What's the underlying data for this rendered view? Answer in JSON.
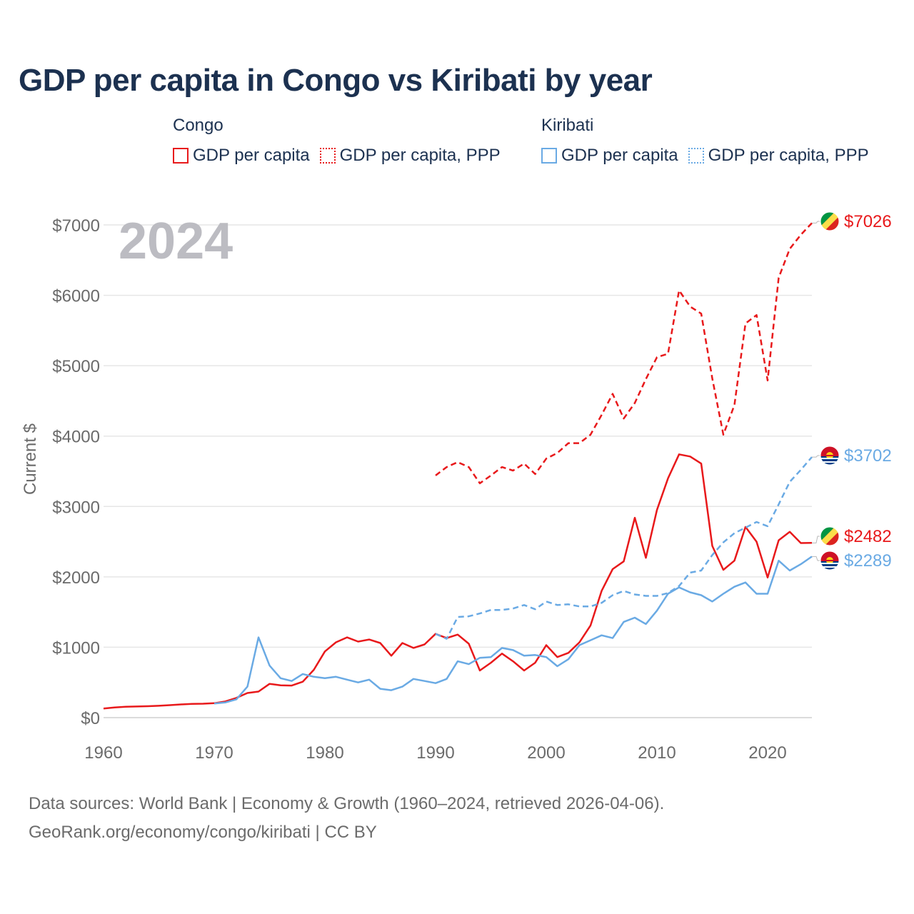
{
  "title": "GDP per capita in Congo vs Kiribati by year",
  "legend": {
    "groups": [
      {
        "name": "Congo",
        "items": [
          {
            "label": "GDP per capita",
            "style": "solid",
            "color": "#e8191b"
          },
          {
            "label": "GDP per capita, PPP",
            "style": "dotted",
            "color": "#e8191b"
          }
        ]
      },
      {
        "name": "Kiribati",
        "items": [
          {
            "label": "GDP per capita",
            "style": "solid",
            "color": "#6aaae4"
          },
          {
            "label": "GDP per capita, PPP",
            "style": "dotted",
            "color": "#6aaae4"
          }
        ]
      }
    ]
  },
  "year_label": "2024",
  "footer": {
    "line1": "Data sources: World Bank | Economy & Growth (1960–2024, retrieved 2026-04-06).",
    "line2": "GeoRank.org/economy/congo/kiribati | CC BY"
  },
  "chart_data": {
    "type": "line",
    "title": "GDP per capita in Congo vs Kiribati by year",
    "xlabel": "",
    "ylabel": "Current $",
    "xlim": [
      1960,
      2024
    ],
    "ylim": [
      0,
      7000
    ],
    "x_ticks": [
      1960,
      1970,
      1980,
      1990,
      2000,
      2010,
      2020
    ],
    "y_ticks": [
      0,
      1000,
      2000,
      3000,
      4000,
      5000,
      6000,
      7000
    ],
    "y_tick_labels": [
      "$0",
      "$1000",
      "$2000",
      "$3000",
      "$4000",
      "$5000",
      "$6000",
      "$7000"
    ],
    "grid": true,
    "series": [
      {
        "name": "Congo GDP per capita",
        "country": "Congo",
        "color": "#e8191b",
        "dash": "solid",
        "end_label": "$2482",
        "flag": "congo",
        "x": [
          1960,
          1961,
          1962,
          1963,
          1964,
          1965,
          1966,
          1967,
          1968,
          1969,
          1970,
          1971,
          1972,
          1973,
          1974,
          1975,
          1976,
          1977,
          1978,
          1979,
          1980,
          1981,
          1982,
          1983,
          1984,
          1985,
          1986,
          1987,
          1988,
          1989,
          1990,
          1991,
          1992,
          1993,
          1994,
          1995,
          1996,
          1997,
          1998,
          1999,
          2000,
          2001,
          2002,
          2003,
          2004,
          2005,
          2006,
          2007,
          2008,
          2009,
          2010,
          2011,
          2012,
          2013,
          2014,
          2015,
          2016,
          2017,
          2018,
          2019,
          2020,
          2021,
          2022,
          2023,
          2024
        ],
        "y": [
          130,
          145,
          155,
          158,
          162,
          168,
          178,
          188,
          195,
          198,
          205,
          230,
          280,
          350,
          370,
          480,
          460,
          455,
          510,
          680,
          940,
          1070,
          1140,
          1080,
          1110,
          1060,
          880,
          1060,
          990,
          1040,
          1190,
          1130,
          1180,
          1050,
          670,
          780,
          910,
          800,
          670,
          780,
          1030,
          860,
          920,
          1070,
          1310,
          1800,
          2110,
          2220,
          2840,
          2270,
          2950,
          3400,
          3740,
          3710,
          3610,
          2440,
          2100,
          2230,
          2710,
          2500,
          1990,
          2520,
          2640,
          2480,
          2482
        ]
      },
      {
        "name": "Congo GDP per capita, PPP",
        "country": "Congo",
        "color": "#e8191b",
        "dash": "dashed",
        "end_label": "$7026",
        "flag": "congo",
        "x": [
          1990,
          1991,
          1992,
          1993,
          1994,
          1995,
          1996,
          1997,
          1998,
          1999,
          2000,
          2001,
          2002,
          2003,
          2004,
          2005,
          2006,
          2007,
          2008,
          2009,
          2010,
          2011,
          2012,
          2013,
          2014,
          2015,
          2016,
          2017,
          2018,
          2019,
          2020,
          2021,
          2022,
          2023,
          2024
        ],
        "y": [
          3440,
          3560,
          3630,
          3560,
          3330,
          3440,
          3560,
          3510,
          3610,
          3460,
          3680,
          3760,
          3900,
          3900,
          4020,
          4300,
          4600,
          4250,
          4470,
          4810,
          5120,
          5170,
          6070,
          5840,
          5740,
          4820,
          4020,
          4440,
          5600,
          5720,
          4790,
          6250,
          6660,
          6860,
          7026
        ]
      },
      {
        "name": "Kiribati GDP per capita",
        "country": "Kiribati",
        "color": "#6aaae4",
        "dash": "solid",
        "end_label": "$2289",
        "flag": "kiribati",
        "x": [
          1970,
          1971,
          1972,
          1973,
          1974,
          1975,
          1976,
          1977,
          1978,
          1979,
          1980,
          1981,
          1982,
          1983,
          1984,
          1985,
          1986,
          1987,
          1988,
          1989,
          1990,
          1991,
          1992,
          1993,
          1994,
          1995,
          1996,
          1997,
          1998,
          1999,
          2000,
          2001,
          2002,
          2003,
          2004,
          2005,
          2006,
          2007,
          2008,
          2009,
          2010,
          2011,
          2012,
          2013,
          2014,
          2015,
          2016,
          2017,
          2018,
          2019,
          2020,
          2021,
          2022,
          2023,
          2024
        ],
        "y": [
          200,
          215,
          260,
          440,
          1140,
          740,
          560,
          520,
          620,
          580,
          560,
          580,
          540,
          500,
          540,
          410,
          390,
          440,
          550,
          520,
          490,
          550,
          800,
          760,
          850,
          860,
          990,
          960,
          880,
          890,
          860,
          730,
          830,
          1030,
          1100,
          1170,
          1130,
          1360,
          1420,
          1330,
          1520,
          1760,
          1850,
          1780,
          1740,
          1650,
          1760,
          1860,
          1920,
          1760,
          1760,
          2230,
          2090,
          2180,
          2289
        ]
      },
      {
        "name": "Kiribati GDP per capita, PPP",
        "country": "Kiribati",
        "color": "#6aaae4",
        "dash": "dashed",
        "end_label": "$3702",
        "flag": "kiribati",
        "x": [
          1990,
          1991,
          1992,
          1993,
          1994,
          1995,
          1996,
          1997,
          1998,
          1999,
          2000,
          2001,
          2002,
          2003,
          2004,
          2005,
          2006,
          2007,
          2008,
          2009,
          2010,
          2011,
          2012,
          2013,
          2014,
          2015,
          2016,
          2017,
          2018,
          2019,
          2020,
          2021,
          2022,
          2023,
          2024
        ],
        "y": [
          1190,
          1120,
          1430,
          1440,
          1480,
          1530,
          1530,
          1550,
          1600,
          1540,
          1650,
          1600,
          1610,
          1580,
          1580,
          1630,
          1740,
          1800,
          1750,
          1730,
          1730,
          1770,
          1870,
          2060,
          2090,
          2310,
          2490,
          2620,
          2700,
          2780,
          2720,
          3030,
          3350,
          3520,
          3702
        ]
      }
    ]
  }
}
